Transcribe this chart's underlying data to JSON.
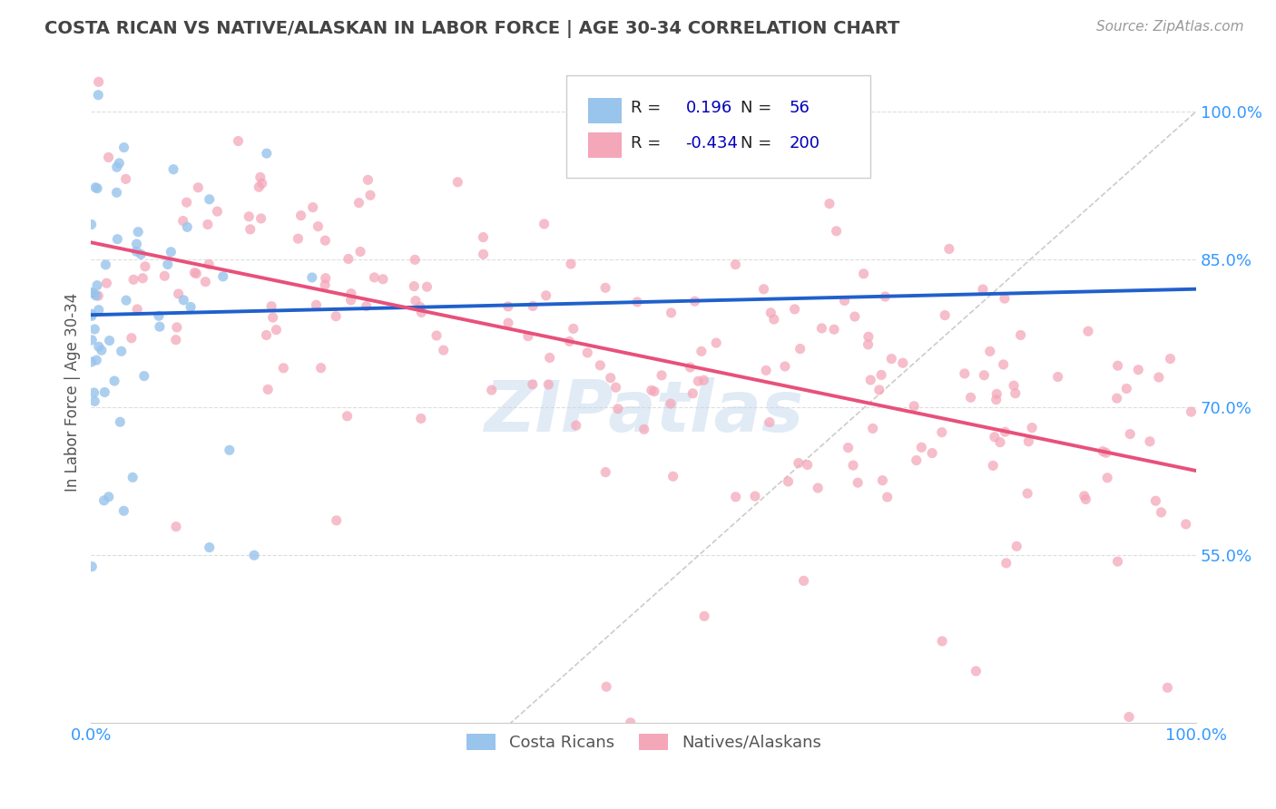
{
  "title": "COSTA RICAN VS NATIVE/ALASKAN IN LABOR FORCE | AGE 30-34 CORRELATION CHART",
  "source_text": "Source: ZipAtlas.com",
  "ylabel": "In Labor Force | Age 30-34",
  "xlim": [
    0.0,
    1.0
  ],
  "ylim": [
    0.38,
    1.05
  ],
  "x_ticks": [
    0.0,
    1.0
  ],
  "x_tick_labels": [
    "0.0%",
    "100.0%"
  ],
  "y_ticks": [
    0.55,
    0.7,
    0.85,
    1.0
  ],
  "y_tick_labels": [
    "55.0%",
    "70.0%",
    "85.0%",
    "100.0%"
  ],
  "r_costa": 0.196,
  "n_costa": 56,
  "r_native": -0.434,
  "n_native": 200,
  "costa_color": "#99C4EC",
  "native_color": "#F4A7B9",
  "trend_costa_color": "#2060CC",
  "trend_native_color": "#E8507A",
  "ref_line_color": "#BBBBBB",
  "watermark": "ZIPatlas",
  "background_color": "#FFFFFF",
  "grid_color": "#DDDDDD",
  "title_color": "#444444",
  "tick_color": "#3399FF",
  "legend_color": "#0000BB",
  "costa_seed": 12,
  "native_seed": 99
}
